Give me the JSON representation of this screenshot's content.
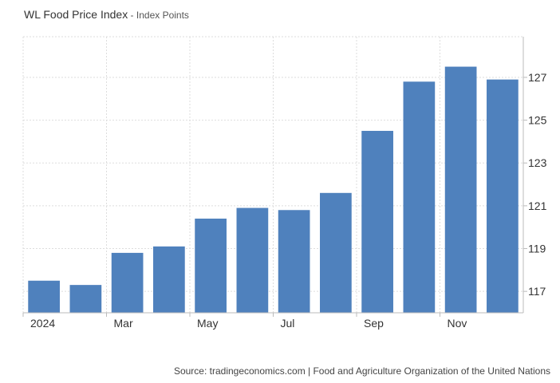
{
  "header": {
    "title": "WL Food Price Index",
    "separator": " - ",
    "subtitle": "Index Points"
  },
  "source": "Source: tradingeconomics.com | Food and Agriculture Organization of the United Nations",
  "colors": {
    "bar": "#4f81bd",
    "grid": "#dddddd",
    "axis": "#bbbbbb",
    "text": "#333333"
  },
  "chart_data": {
    "type": "bar",
    "title": "WL Food Price Index",
    "subtitle": "Index Points",
    "categories": [
      "2024-01",
      "2024-02",
      "2024-03",
      "2024-04",
      "2024-05",
      "2024-06",
      "2024-07",
      "2024-08",
      "2024-09",
      "2024-10",
      "2024-11",
      "2024-12"
    ],
    "values": [
      117.5,
      117.3,
      118.8,
      119.1,
      120.4,
      120.9,
      120.8,
      121.6,
      124.5,
      126.8,
      127.5,
      126.9
    ],
    "x_tick_labels": [
      {
        "index": 0,
        "label": "2024"
      },
      {
        "index": 2,
        "label": "Mar"
      },
      {
        "index": 4,
        "label": "May"
      },
      {
        "index": 6,
        "label": "Jul"
      },
      {
        "index": 8,
        "label": "Sep"
      },
      {
        "index": 10,
        "label": "Nov"
      }
    ],
    "y_ticks": [
      117,
      119,
      121,
      123,
      125,
      127
    ],
    "ylim": [
      116.0,
      128.9
    ],
    "y_axis_side": "right",
    "grid": true,
    "legend": "none"
  }
}
